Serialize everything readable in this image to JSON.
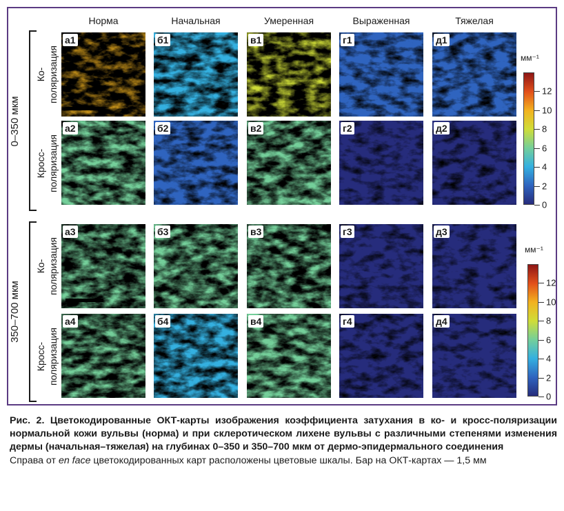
{
  "columns": [
    "Норма",
    "Начальная",
    "Умеренная",
    "Выраженная",
    "Тяжелая"
  ],
  "depth_groups": [
    {
      "label": "0–350 мкм",
      "rows": [
        {
          "polarization": [
            "Ко-",
            "поляризация"
          ],
          "panels": [
            "а1",
            "б1",
            "в1",
            "г1",
            "д1"
          ]
        },
        {
          "polarization": [
            "Кросс-",
            "поляризация"
          ],
          "panels": [
            "а2",
            "б2",
            "в2",
            "г2",
            "д2"
          ]
        }
      ]
    },
    {
      "label": "350–700 мкм",
      "rows": [
        {
          "polarization": [
            "Ко-",
            "поляризация"
          ],
          "panels": [
            "а3",
            "б3",
            "в3",
            "г3",
            "д3"
          ]
        },
        {
          "polarization": [
            "Кросс-",
            "поляризация"
          ],
          "panels": [
            "а4",
            "б4",
            "в4",
            "г4",
            "д4"
          ]
        }
      ]
    }
  ],
  "colorbar": {
    "unit": "мм⁻¹",
    "ticks": [
      "0",
      "2",
      "4",
      "6",
      "8",
      "10",
      "12"
    ],
    "min": 0,
    "max": 14,
    "colors": [
      "#262c7c",
      "#2f64bf",
      "#34b0e0",
      "#74cf9a",
      "#cfdd38",
      "#f2b21f",
      "#e2501a",
      "#8e1616"
    ]
  },
  "panel_levels": {
    "а1": 0.85,
    "б1": 0.45,
    "в1": 0.7,
    "г1": 0.25,
    "д1": 0.28,
    "а2": 0.55,
    "б2": 0.28,
    "в2": 0.55,
    "г2": 0.15,
    "д2": 0.2,
    "а3": 0.62,
    "б3": 0.55,
    "в3": 0.6,
    "г3": 0.14,
    "д3": 0.12,
    "а4": 0.58,
    "б4": 0.45,
    "в4": 0.5,
    "г4": 0.18,
    "д4": 0.12
  },
  "caption": {
    "title": "Рис. 2. Цветокодированные ОКТ-карты изображения коэффициента затухания в ко- и кросс-поляризации нормальной кожи вульвы (норма) и при склеротическом лихене вульвы с различными степенями изменения дермы (начальная–тяжелая) на глубинах 0–350 и 350–700 мкм от дермо-эпидермального соединения",
    "note_before": "Справа от ",
    "note_italic": "en face",
    "note_after": " цветокодированных карт расположены цветовые шкалы. Бар на ОКТ-картах — 1,5 мм"
  }
}
